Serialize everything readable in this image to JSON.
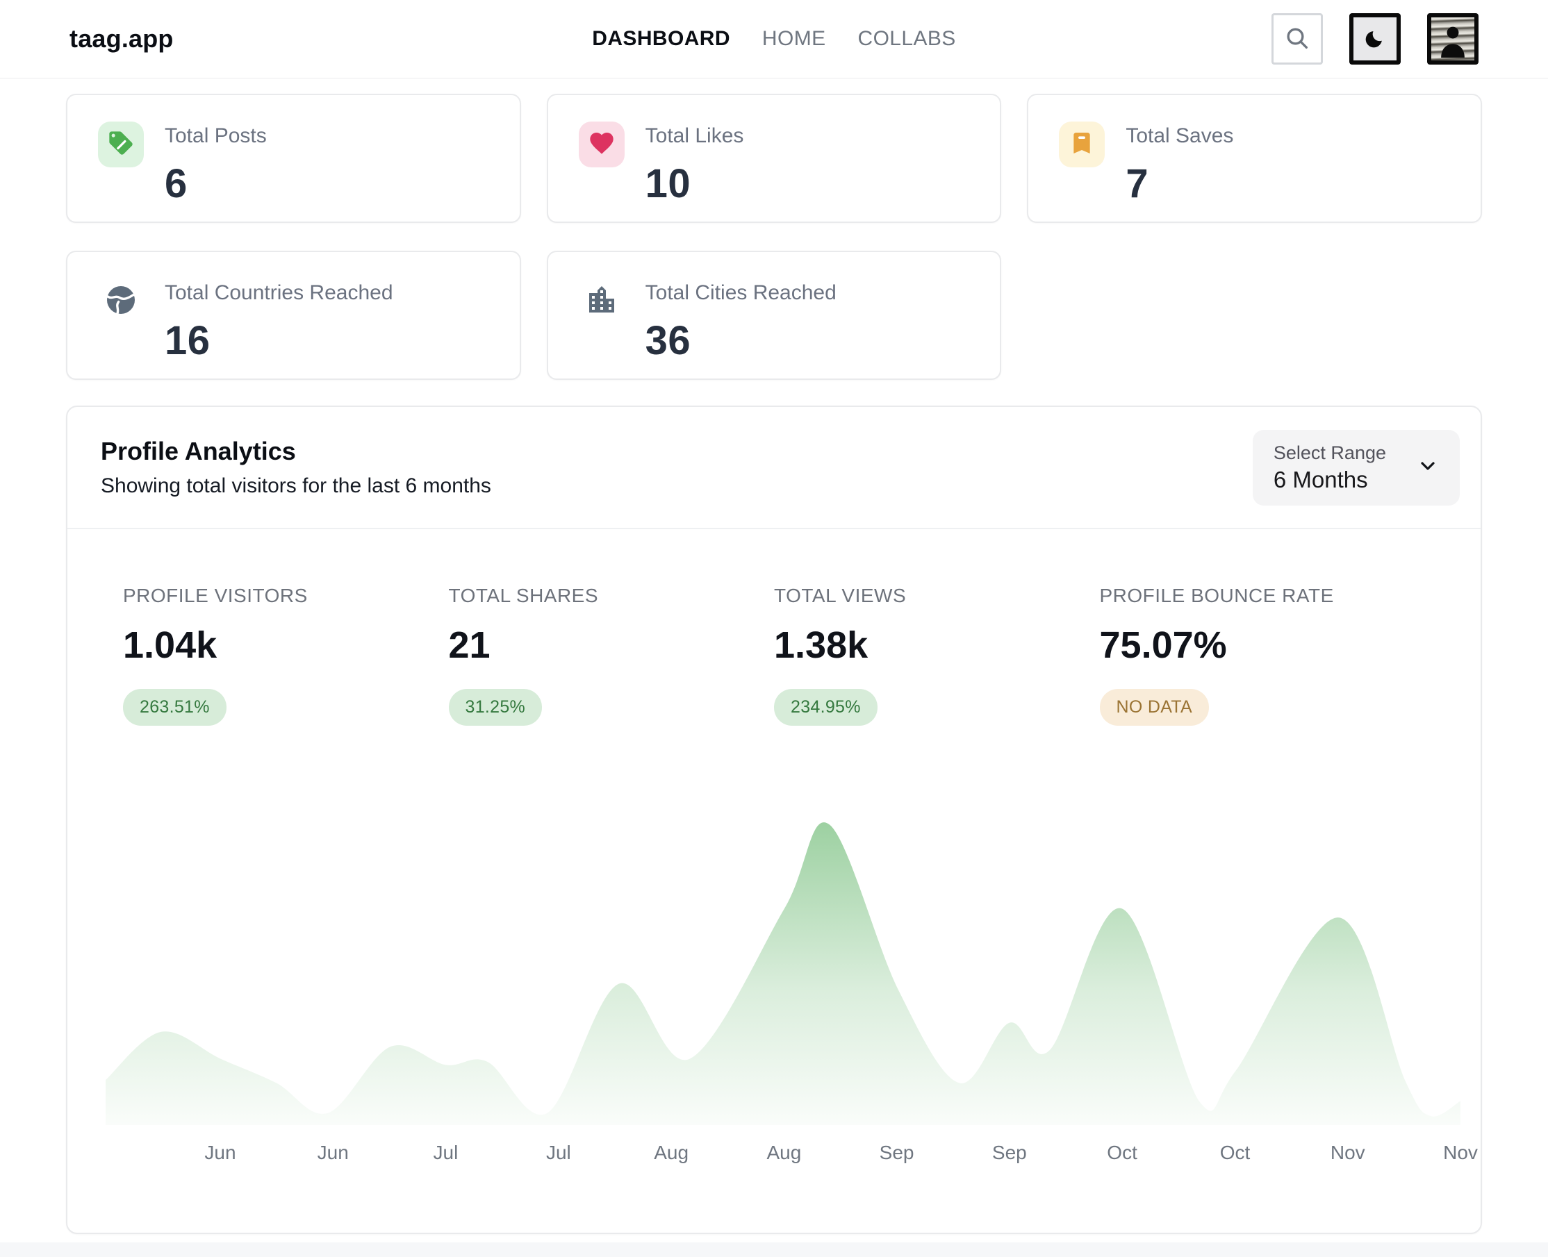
{
  "header": {
    "logo": "taag.app",
    "nav": [
      {
        "label": "DASHBOARD",
        "active": true
      },
      {
        "label": "HOME",
        "active": false
      },
      {
        "label": "COLLABS",
        "active": false
      }
    ],
    "actions": {
      "search_icon": "search-icon",
      "theme_icon": "moon-icon",
      "avatar": "user-avatar"
    }
  },
  "stat_cards": [
    {
      "label": "Total Posts",
      "value": "6",
      "icon": "tag-icon",
      "icon_color": "#4caf50",
      "icon_bg": "#ddf3e0"
    },
    {
      "label": "Total Likes",
      "value": "10",
      "icon": "heart-icon",
      "icon_color": "#dd3360",
      "icon_bg": "#fadde6"
    },
    {
      "label": "Total Saves",
      "value": "7",
      "icon": "bookmark-icon",
      "icon_color": "#e8a33d",
      "icon_bg": "#fdf4d9"
    },
    {
      "label": "Total Countries Reached",
      "value": "16",
      "icon": "globe-icon",
      "icon_color": "#5d6b7a",
      "icon_bg": "transparent"
    },
    {
      "label": "Total Cities Reached",
      "value": "36",
      "icon": "city-icon",
      "icon_color": "#5d6b7a",
      "icon_bg": "transparent"
    }
  ],
  "analytics": {
    "title": "Profile Analytics",
    "subtitle": "Showing total visitors for the last 6 months",
    "range_label": "Select Range",
    "range_value": "6 Months",
    "stats": [
      {
        "label": "PROFILE VISITORS",
        "value": "1.04k",
        "badge": "263.51%",
        "badge_type": "green"
      },
      {
        "label": "TOTAL SHARES",
        "value": "21",
        "badge": "31.25%",
        "badge_type": "green"
      },
      {
        "label": "TOTAL VIEWS",
        "value": "1.38k",
        "badge": "234.95%",
        "badge_type": "green"
      },
      {
        "label": "PROFILE BOUNCE RATE",
        "value": "75.07%",
        "badge": "NO DATA",
        "badge_type": "orange"
      }
    ]
  },
  "chart_data": {
    "type": "area",
    "series": [
      {
        "name": "visitors",
        "points": [
          [
            0,
            15
          ],
          [
            0.041,
            31
          ],
          [
            0.085,
            22
          ],
          [
            0.126,
            14
          ],
          [
            0.164,
            4
          ],
          [
            0.21,
            26
          ],
          [
            0.251,
            20
          ],
          [
            0.282,
            21
          ],
          [
            0.326,
            4
          ],
          [
            0.379,
            47
          ],
          [
            0.431,
            22
          ],
          [
            0.501,
            72
          ],
          [
            0.534,
            100
          ],
          [
            0.585,
            45
          ],
          [
            0.63,
            14
          ],
          [
            0.667,
            34
          ],
          [
            0.697,
            25
          ],
          [
            0.75,
            72
          ],
          [
            0.807,
            8
          ],
          [
            0.834,
            18
          ],
          [
            0.91,
            69
          ],
          [
            0.959,
            15
          ],
          [
            0.978,
            3
          ],
          [
            1,
            8
          ]
        ]
      }
    ],
    "x_tick_labels": [
      "Jun",
      "Jun",
      "Jul",
      "Jul",
      "Aug",
      "Aug",
      "Sep",
      "Sep",
      "Oct",
      "Oct",
      "Nov",
      "Nov"
    ],
    "y_axis_visible": false,
    "ylim": [
      0,
      100
    ],
    "y_scale_note": "relative % of max peak (no y-axis shown)",
    "grid": false,
    "legend": false,
    "area_color": "#7cc182"
  },
  "colors": {
    "badge_green_bg": "#d7ecd9",
    "badge_green_text": "#35793f",
    "badge_orange_bg": "#f9ecd9",
    "badge_orange_text": "#9b7434",
    "card_border": "#e9eaec",
    "muted_text": "#6b7280"
  }
}
